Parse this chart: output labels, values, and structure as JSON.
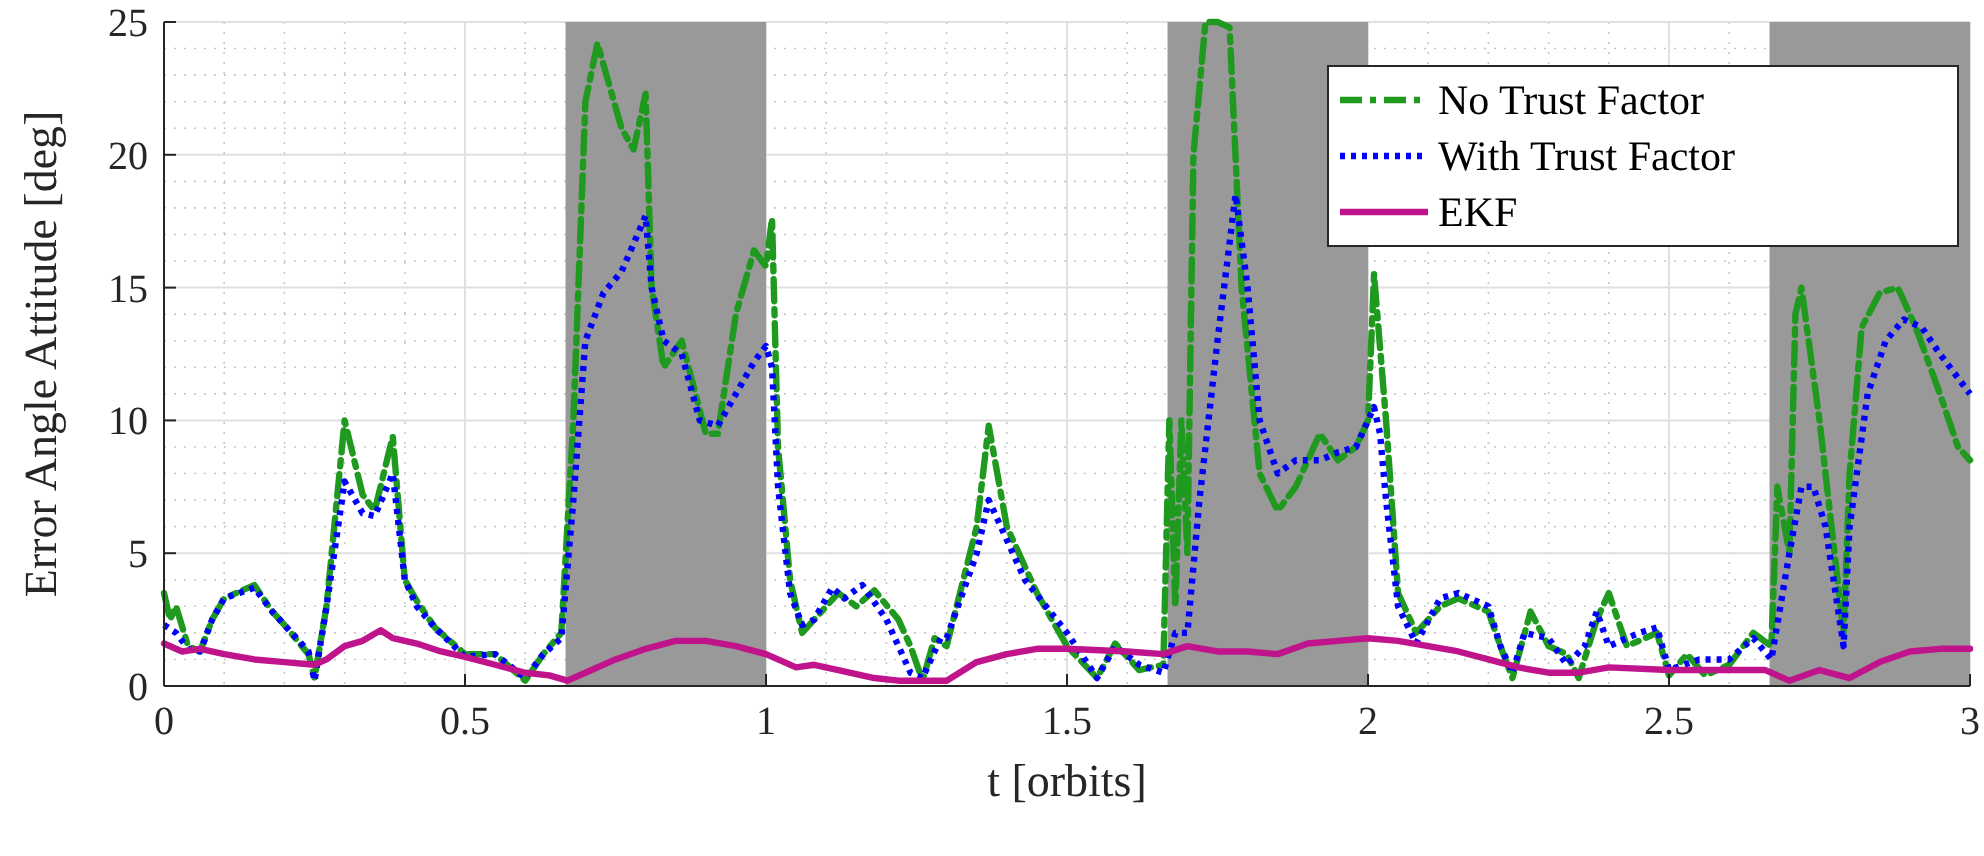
{
  "chart_data": {
    "type": "line",
    "xlabel": "t [orbits]",
    "ylabel": "Error Angle Attitude [deg]",
    "xlim": [
      0,
      3
    ],
    "xticks": [
      0,
      0.5,
      1,
      1.5,
      2,
      2.5,
      3
    ],
    "ylim": [
      0,
      25
    ],
    "yticks": [
      0,
      5,
      10,
      15,
      20,
      25
    ],
    "grid": true,
    "legend": "top right",
    "bands": [
      {
        "axis": "x",
        "from": 0.667,
        "to": 1,
        "color": "#999999"
      },
      {
        "axis": "x",
        "from": 1.667,
        "to": 2,
        "color": "#999999"
      },
      {
        "axis": "x",
        "from": 2.667,
        "to": 3,
        "color": "#999999"
      }
    ],
    "series": [
      {
        "name": "No Trust Factor",
        "color": "#1f9a1f",
        "line_style": "dashed",
        "x": [
          0,
          0.01,
          0.02,
          0.04,
          0.06,
          0.08,
          0.1,
          0.15,
          0.18,
          0.2,
          0.24,
          0.25,
          0.27,
          0.3,
          0.33,
          0.35,
          0.38,
          0.4,
          0.42,
          0.45,
          0.5,
          0.55,
          0.6,
          0.63,
          0.66,
          0.68,
          0.7,
          0.72,
          0.76,
          0.78,
          0.8,
          0.81,
          0.83,
          0.86,
          0.9,
          0.92,
          0.95,
          0.98,
          1.0,
          1.01,
          1.02,
          1.04,
          1.06,
          1.08,
          1.12,
          1.15,
          1.18,
          1.22,
          1.24,
          1.26,
          1.28,
          1.3,
          1.35,
          1.37,
          1.4,
          1.45,
          1.5,
          1.55,
          1.58,
          1.62,
          1.66,
          1.67,
          1.68,
          1.69,
          1.7,
          1.71,
          1.73,
          1.75,
          1.77,
          1.79,
          1.82,
          1.85,
          1.88,
          1.92,
          1.95,
          1.98,
          2.0,
          2.01,
          2.03,
          2.05,
          2.08,
          2.12,
          2.15,
          2.2,
          2.22,
          2.24,
          2.27,
          2.3,
          2.33,
          2.35,
          2.38,
          2.4,
          2.43,
          2.46,
          2.48,
          2.5,
          2.53,
          2.56,
          2.6,
          2.64,
          2.67,
          2.68,
          2.7,
          2.71,
          2.72,
          2.75,
          2.78,
          2.79,
          2.8,
          2.82,
          2.85,
          2.88,
          2.91,
          2.95,
          2.98,
          3.0
        ],
        "values": [
          3.5,
          2.5,
          3,
          1.5,
          1.3,
          2.5,
          3.3,
          3.8,
          2.8,
          2.3,
          1.2,
          0.3,
          3,
          10,
          7.2,
          6.6,
          9.4,
          4,
          3.2,
          2.2,
          1.2,
          1.2,
          0.2,
          1.2,
          2,
          10,
          22,
          24.2,
          21,
          20.2,
          22.3,
          15,
          12,
          13,
          9.5,
          9.5,
          14,
          16.4,
          15.8,
          17.6,
          9,
          4,
          2,
          2.5,
          3.5,
          3,
          3.6,
          2.5,
          1.5,
          0.2,
          1.8,
          1.5,
          6,
          9.8,
          6,
          3.5,
          1.5,
          0.3,
          1.6,
          0.6,
          0.8,
          10,
          3,
          10,
          5,
          20,
          25,
          25,
          24.8,
          15,
          8,
          6.6,
          7.5,
          9.5,
          8.5,
          9,
          10,
          15.5,
          10,
          3.5,
          2,
          3,
          3.3,
          2.8,
          1.5,
          0.3,
          2.8,
          1.5,
          1.2,
          0.3,
          2.5,
          3.5,
          1.5,
          1.8,
          2,
          0.4,
          1.2,
          0.4,
          0.8,
          2,
          1.5,
          7.5,
          5,
          14,
          15,
          10,
          4,
          2,
          8,
          13.5,
          14.8,
          15,
          13.5,
          11,
          9,
          8.5
        ]
      },
      {
        "name": "With Trust Factor",
        "color": "#0000ff",
        "line_style": "dotted",
        "x": [
          0,
          0.02,
          0.04,
          0.06,
          0.08,
          0.1,
          0.15,
          0.18,
          0.2,
          0.24,
          0.25,
          0.27,
          0.3,
          0.33,
          0.35,
          0.38,
          0.4,
          0.42,
          0.45,
          0.5,
          0.55,
          0.6,
          0.63,
          0.66,
          0.68,
          0.7,
          0.73,
          0.76,
          0.8,
          0.81,
          0.83,
          0.86,
          0.89,
          0.92,
          0.95,
          0.98,
          1.0,
          1.01,
          1.02,
          1.04,
          1.06,
          1.08,
          1.11,
          1.13,
          1.16,
          1.2,
          1.24,
          1.26,
          1.29,
          1.3,
          1.35,
          1.37,
          1.4,
          1.43,
          1.5,
          1.55,
          1.58,
          1.62,
          1.66,
          1.68,
          1.7,
          1.72,
          1.75,
          1.78,
          1.8,
          1.82,
          1.85,
          1.88,
          1.92,
          1.95,
          1.98,
          2.0,
          2.01,
          2.02,
          2.03,
          2.05,
          2.08,
          2.12,
          2.15,
          2.2,
          2.22,
          2.24,
          2.26,
          2.3,
          2.33,
          2.36,
          2.38,
          2.4,
          2.45,
          2.48,
          2.5,
          2.55,
          2.6,
          2.64,
          2.67,
          2.7,
          2.72,
          2.74,
          2.76,
          2.78,
          2.79,
          2.8,
          2.83,
          2.86,
          2.89,
          2.92,
          2.95,
          3.0
        ],
        "values": [
          2.3,
          2,
          1.4,
          1.3,
          2.5,
          3.3,
          3.7,
          2.8,
          2.3,
          1.3,
          0.2,
          3,
          7.7,
          6.5,
          6.4,
          8,
          4,
          3,
          2.2,
          1.1,
          1.2,
          0.3,
          1.2,
          1.8,
          7,
          13,
          14.8,
          15.6,
          17.7,
          15,
          13,
          12.5,
          10,
          9.8,
          11,
          12.2,
          12.8,
          12,
          7.5,
          3.5,
          2.3,
          2.5,
          3.7,
          3.3,
          3.8,
          2.5,
          0.5,
          0.3,
          1.8,
          1.8,
          5,
          7,
          5.5,
          4,
          2,
          0.3,
          1.5,
          0.8,
          0.5,
          2,
          2,
          7,
          13,
          18.5,
          15,
          10,
          8,
          8.5,
          8.5,
          8.8,
          9,
          10,
          10.5,
          9.5,
          7,
          3,
          1.6,
          3.3,
          3.5,
          3,
          1.5,
          0.5,
          2,
          1.8,
          0.8,
          1.5,
          2.8,
          1.5,
          2,
          2.2,
          0.6,
          1,
          1,
          1.8,
          1,
          5,
          7.5,
          7.5,
          6,
          3,
          1.5,
          6,
          11,
          13,
          13.8,
          13.5,
          12.5,
          11
        ]
      },
      {
        "name": "EKF",
        "color": "#c0148c",
        "line_style": "solid",
        "x": [
          0,
          0.03,
          0.06,
          0.1,
          0.15,
          0.2,
          0.25,
          0.27,
          0.3,
          0.33,
          0.36,
          0.38,
          0.42,
          0.46,
          0.5,
          0.55,
          0.6,
          0.64,
          0.67,
          0.7,
          0.75,
          0.8,
          0.85,
          0.9,
          0.95,
          1.0,
          1.05,
          1.08,
          1.12,
          1.18,
          1.22,
          1.3,
          1.35,
          1.4,
          1.45,
          1.5,
          1.6,
          1.66,
          1.7,
          1.75,
          1.8,
          1.85,
          1.9,
          1.95,
          2.0,
          2.05,
          2.1,
          2.15,
          2.2,
          2.25,
          2.3,
          2.35,
          2.4,
          2.5,
          2.6,
          2.66,
          2.7,
          2.75,
          2.8,
          2.85,
          2.9,
          2.95,
          3.0
        ],
        "values": [
          1.6,
          1.3,
          1.4,
          1.2,
          1,
          0.9,
          0.8,
          1,
          1.5,
          1.7,
          2.1,
          1.8,
          1.6,
          1.3,
          1.1,
          0.8,
          0.5,
          0.4,
          0.2,
          0.5,
          1,
          1.4,
          1.7,
          1.7,
          1.5,
          1.2,
          0.7,
          0.8,
          0.6,
          0.3,
          0.2,
          0.2,
          0.9,
          1.2,
          1.4,
          1.4,
          1.3,
          1.2,
          1.5,
          1.3,
          1.3,
          1.2,
          1.6,
          1.7,
          1.8,
          1.7,
          1.5,
          1.3,
          1,
          0.7,
          0.5,
          0.5,
          0.7,
          0.6,
          0.6,
          0.6,
          0.2,
          0.6,
          0.3,
          0.9,
          1.3,
          1.4,
          1.4
        ]
      }
    ]
  }
}
